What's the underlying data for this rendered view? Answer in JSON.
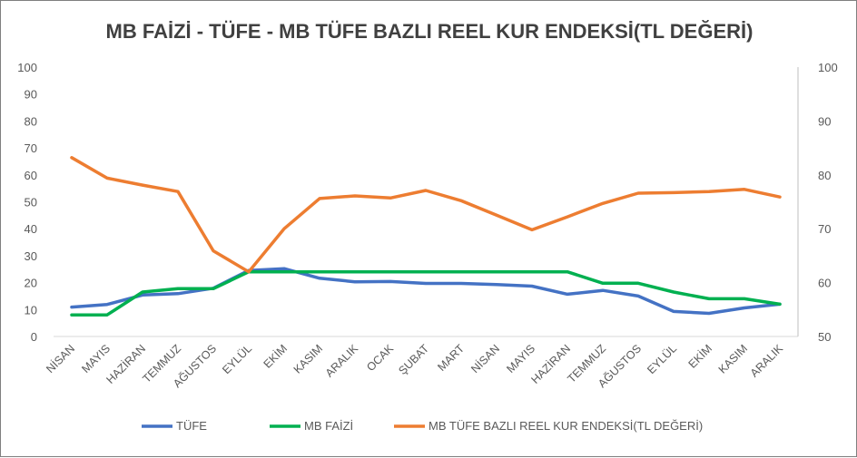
{
  "chart_data": {
    "type": "line",
    "title": "MB FAİZİ - TÜFE - MB TÜFE BAZLI REEL KUR ENDEKSİ(TL DEĞERİ)",
    "categories": [
      "NİSAN",
      "MAYIS",
      "HAZİRAN",
      "TEMMUZ",
      "AĞUSTOS",
      "EYLÜL",
      "EKİM",
      "KASIM",
      "ARALIK",
      "OCAK",
      "ŞUBAT",
      "MART",
      "NİSAN",
      "MAYIS",
      "HAZİRAN",
      "TEMMUZ",
      "AĞUSTOS",
      "EYLÜL",
      "EKİM",
      "KASIM",
      "ARALIK"
    ],
    "left_axis": {
      "min": 0,
      "max": 100,
      "step": 10,
      "ticks": [
        "0",
        "10",
        "20",
        "30",
        "40",
        "50",
        "60",
        "70",
        "80",
        "90",
        "100"
      ]
    },
    "right_axis": {
      "min": 50,
      "max": 100,
      "step": 10,
      "ticks": [
        "50",
        "60",
        "70",
        "80",
        "90",
        "100"
      ]
    },
    "grid": false,
    "legend_position": "bottom",
    "series": [
      {
        "name": "TÜFE",
        "axis": "left",
        "color": "#4472c4",
        "values": [
          10.9,
          11.9,
          15.4,
          15.9,
          17.9,
          24.5,
          25.2,
          21.6,
          20.3,
          20.4,
          19.7,
          19.7,
          19.3,
          18.7,
          15.7,
          17.1,
          15.0,
          9.3,
          8.6,
          10.6,
          12.0
        ]
      },
      {
        "name": "MB FAİZİ",
        "axis": "left",
        "color": "#00b050",
        "values": [
          8.0,
          8.0,
          16.5,
          17.75,
          17.75,
          24.0,
          24.0,
          24.0,
          24.0,
          24.0,
          24.0,
          24.0,
          24.0,
          24.0,
          24.0,
          19.75,
          19.75,
          16.5,
          14.0,
          14.0,
          12.0
        ]
      },
      {
        "name": "MB TÜFE BAZLI REEL KUR ENDEKSİ(TL DEĞERİ)",
        "axis": "right",
        "color": "#ed7d31",
        "values": [
          83.2,
          79.4,
          78.1,
          76.9,
          65.9,
          62.0,
          70.0,
          75.6,
          76.1,
          75.7,
          77.1,
          75.2,
          72.5,
          69.8,
          72.2,
          74.7,
          76.6,
          76.7,
          76.9,
          77.3,
          75.9
        ]
      }
    ]
  }
}
